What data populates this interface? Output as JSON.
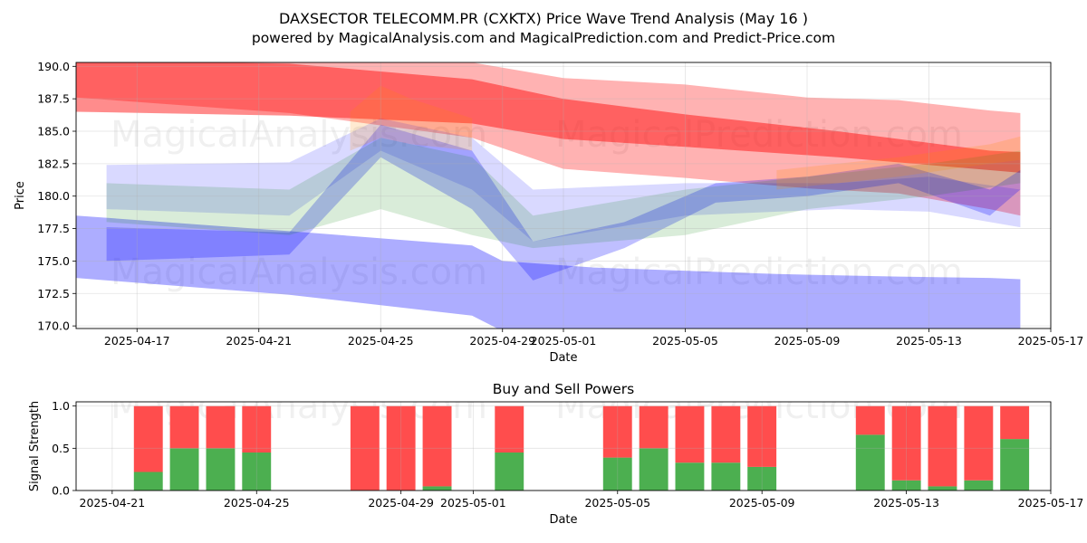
{
  "chart_data": [
    {
      "type": "area",
      "title": "DAXSECTOR TELECOMM.PR (CXKTX) Price Wave Trend Analysis (May 16 )",
      "subtitle": "powered by MagicalAnalysis.com and MagicalPrediction.com and Predict-Price.com",
      "xlabel": "Date",
      "ylabel": "Price",
      "xlim": [
        "2025-04-15",
        "2025-05-17"
      ],
      "ylim": [
        169.8,
        190.3
      ],
      "x_ticks": [
        "2025-04-17",
        "2025-04-21",
        "2025-04-25",
        "2025-04-29",
        "2025-05-01",
        "2025-05-05",
        "2025-05-09",
        "2025-05-13",
        "2025-05-17"
      ],
      "y_ticks": [
        "170.0",
        "172.5",
        "175.0",
        "177.5",
        "180.0",
        "182.5",
        "185.0",
        "187.5",
        "190.0"
      ],
      "grid": true,
      "watermarks": [
        "MagicalAnalysis.com",
        "MagicalPrediction.com",
        "MagicalAnalysis.com",
        "MagicalPrediction.com"
      ],
      "bands": [
        {
          "color": "#ff0000",
          "opacity": 0.45,
          "x": [
            "2025-04-15",
            "2025-04-22",
            "2025-04-28",
            "2025-05-01",
            "2025-05-05",
            "2025-05-10",
            "2025-05-15",
            "2025-05-16"
          ],
          "upper": [
            190.5,
            190.2,
            189.0,
            187.5,
            186.3,
            185.0,
            183.5,
            183.4
          ],
          "lower": [
            186.5,
            186.2,
            185.6,
            184.4,
            183.8,
            183.0,
            182.0,
            181.8
          ]
        },
        {
          "color": "#ff0000",
          "opacity": 0.3,
          "x": [
            "2025-04-15",
            "2025-04-22",
            "2025-04-28",
            "2025-05-01",
            "2025-05-05",
            "2025-05-09",
            "2025-05-12",
            "2025-05-15",
            "2025-05-16"
          ],
          "upper": [
            190.6,
            190.4,
            190.3,
            189.1,
            188.6,
            187.6,
            187.4,
            186.6,
            186.4
          ],
          "lower": [
            187.6,
            186.4,
            184.5,
            182.1,
            181.4,
            180.6,
            180.2,
            179.0,
            178.5
          ]
        },
        {
          "color": "#0000ff",
          "opacity": 0.32,
          "x": [
            "2025-04-15",
            "2025-04-22",
            "2025-04-28",
            "2025-04-29",
            "2025-05-02",
            "2025-05-08",
            "2025-05-12",
            "2025-05-15",
            "2025-05-16"
          ],
          "upper": [
            178.5,
            177.3,
            176.2,
            175.0,
            174.5,
            174.0,
            173.8,
            173.7,
            173.6
          ],
          "lower": [
            173.7,
            172.4,
            170.8,
            169.6,
            169.6,
            169.6,
            169.6,
            169.6,
            169.5
          ]
        },
        {
          "color": "#0000ff",
          "opacity": 0.25,
          "x": [
            "2025-04-16",
            "2025-04-22",
            "2025-04-25",
            "2025-04-28",
            "2025-04-30",
            "2025-05-03",
            "2025-05-06",
            "2025-05-09",
            "2025-05-12",
            "2025-05-15",
            "2025-05-16"
          ],
          "upper": [
            177.6,
            177.2,
            185.5,
            183.5,
            176.5,
            178.0,
            181.0,
            181.5,
            182.5,
            180.5,
            182.0
          ],
          "lower": [
            175.0,
            175.5,
            183.0,
            179.0,
            173.5,
            176.0,
            179.5,
            180.0,
            181.0,
            178.5,
            180.5
          ]
        },
        {
          "color": "#0000ff",
          "opacity": 0.15,
          "x": [
            "2025-04-16",
            "2025-04-22",
            "2025-04-25",
            "2025-04-28",
            "2025-04-30",
            "2025-05-05",
            "2025-05-10",
            "2025-05-13",
            "2025-05-16"
          ],
          "upper": [
            182.4,
            182.6,
            186.0,
            184.5,
            180.5,
            181.0,
            181.0,
            181.5,
            180.5
          ],
          "lower": [
            179.0,
            178.5,
            183.5,
            180.5,
            176.5,
            178.5,
            179.0,
            178.8,
            177.6
          ]
        },
        {
          "color": "#008000",
          "opacity": 0.15,
          "x": [
            "2025-04-16",
            "2025-04-22",
            "2025-04-25",
            "2025-04-28",
            "2025-04-30",
            "2025-05-05",
            "2025-05-09",
            "2025-05-13",
            "2025-05-16"
          ],
          "upper": [
            181.0,
            180.5,
            184.5,
            183.0,
            178.5,
            180.5,
            181.5,
            182.5,
            183.5
          ],
          "lower": [
            178.0,
            177.0,
            179.0,
            177.0,
            176.0,
            177.0,
            179.0,
            180.0,
            181.0
          ]
        },
        {
          "color": "#ff8c00",
          "opacity": 0.18,
          "x": [
            "2025-04-24",
            "2025-04-25",
            "2025-04-26",
            "2025-04-28"
          ],
          "upper": [
            186.5,
            188.5,
            187.5,
            186.0
          ],
          "lower": [
            183.5,
            184.5,
            184.0,
            183.5
          ]
        },
        {
          "color": "#ff8c00",
          "opacity": 0.2,
          "x": [
            "2025-05-08",
            "2025-05-12",
            "2025-05-15",
            "2025-05-16"
          ],
          "upper": [
            182.0,
            183.0,
            184.0,
            184.6
          ],
          "lower": [
            180.5,
            181.5,
            182.5,
            182.8
          ]
        }
      ]
    },
    {
      "type": "bar",
      "stacked": true,
      "title": "Buy and Sell Powers",
      "xlabel": "Date",
      "ylabel": "Signal Strength",
      "xlim": [
        "2025-04-20",
        "2025-05-17"
      ],
      "ylim": [
        0,
        1.05
      ],
      "x_ticks": [
        "2025-04-21",
        "2025-04-25",
        "2025-04-29",
        "2025-05-01",
        "2025-05-05",
        "2025-05-09",
        "2025-05-13",
        "2025-05-17"
      ],
      "y_ticks": [
        "0.0",
        "0.5",
        "1.0"
      ],
      "grid": true,
      "watermarks": [
        "MagicalAnalysis.com",
        "MagicalPrediction.com"
      ],
      "categories": [
        "2025-04-22",
        "2025-04-23",
        "2025-04-24",
        "2025-04-25",
        "2025-04-28",
        "2025-04-29",
        "2025-04-30",
        "2025-05-02",
        "2025-05-05",
        "2025-05-06",
        "2025-05-07",
        "2025-05-08",
        "2025-05-09",
        "2025-05-12",
        "2025-05-13",
        "2025-05-14",
        "2025-05-15",
        "2025-05-16"
      ],
      "series": [
        {
          "values": [
            0.22,
            0.5,
            0.5,
            0.45,
            0.0,
            0.0,
            0.05,
            0.45,
            0.39,
            0.5,
            0.33,
            0.33,
            0.28,
            0.66,
            0.12,
            0.05,
            0.12,
            0.61
          ],
          "color": "#4caf50"
        },
        {
          "values": [
            0.78,
            0.5,
            0.5,
            0.55,
            1.0,
            1.0,
            0.95,
            0.55,
            0.61,
            0.5,
            0.67,
            0.67,
            0.72,
            0.34,
            0.88,
            0.95,
            0.88,
            0.39
          ],
          "color": "#ff4d4d"
        }
      ]
    }
  ]
}
